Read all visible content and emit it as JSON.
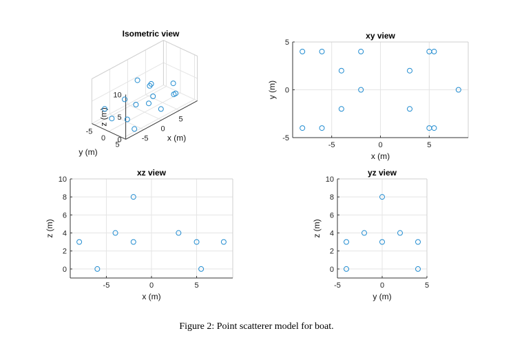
{
  "figure": {
    "caption": "Figure 2: Point scatterer model for boat."
  },
  "colors": {
    "marker": "#1f8bd0",
    "grid": "#e4e4e4",
    "axis": "#333333",
    "back_axis": "#cfcfcf"
  },
  "chart_data": [
    {
      "id": "iso",
      "type": "scatter3d",
      "title": "Isometric view",
      "xlabel": "x (m)",
      "ylabel": "y (m)",
      "zlabel": "z (m)",
      "xlim": [
        -10,
        10
      ],
      "ylim": [
        -6,
        6
      ],
      "zlim": [
        0,
        10
      ],
      "xticks": [
        -5,
        0,
        5
      ],
      "yticks": [
        -5,
        0,
        5
      ],
      "zticks": [
        0,
        5,
        10
      ],
      "points": [
        {
          "x": -8,
          "y": 4,
          "z": 3
        },
        {
          "x": -6,
          "y": 4,
          "z": 0
        },
        {
          "x": -2,
          "y": 4,
          "z": 4
        },
        {
          "x": 5,
          "y": 4,
          "z": 3
        },
        {
          "x": 5.5,
          "y": 4,
          "z": 3
        },
        {
          "x": -4,
          "y": 2,
          "z": 4
        },
        {
          "x": 3,
          "y": 2,
          "z": 0
        },
        {
          "x": -2,
          "y": 0,
          "z": 8
        },
        {
          "x": 8,
          "y": 0,
          "z": 3
        },
        {
          "x": -4,
          "y": -2,
          "z": 4
        },
        {
          "x": 3,
          "y": -2,
          "z": 4
        },
        {
          "x": -8,
          "y": -4,
          "z": 3
        },
        {
          "x": -6,
          "y": -4,
          "z": 0
        },
        {
          "x": 5,
          "y": -4,
          "z": 3
        },
        {
          "x": 5.5,
          "y": -4,
          "z": 0
        }
      ]
    },
    {
      "id": "xy",
      "type": "scatter",
      "title": "xy view",
      "xlabel": "x (m)",
      "ylabel": "y (m)",
      "xlim": [
        -9,
        9
      ],
      "ylim": [
        -5,
        5
      ],
      "xticks": [
        -5,
        0,
        5
      ],
      "yticks": [
        -5,
        0,
        5
      ],
      "points": [
        {
          "x": -8,
          "y": 4
        },
        {
          "x": -6,
          "y": 4
        },
        {
          "x": -2,
          "y": 4
        },
        {
          "x": 5,
          "y": 4
        },
        {
          "x": 5.5,
          "y": 4
        },
        {
          "x": -4,
          "y": 2
        },
        {
          "x": 3,
          "y": 2
        },
        {
          "x": -2,
          "y": 0
        },
        {
          "x": 8,
          "y": 0
        },
        {
          "x": -4,
          "y": -2
        },
        {
          "x": 3,
          "y": -2
        },
        {
          "x": -8,
          "y": -4
        },
        {
          "x": -6,
          "y": -4
        },
        {
          "x": 5,
          "y": -4
        },
        {
          "x": 5.5,
          "y": -4
        }
      ]
    },
    {
      "id": "xz",
      "type": "scatter",
      "title": "xz view",
      "xlabel": "x (m)",
      "ylabel": "z (m)",
      "xlim": [
        -9,
        9
      ],
      "ylim": [
        -1,
        10
      ],
      "xticks": [
        -5,
        0,
        5
      ],
      "yticks": [
        0,
        2,
        4,
        6,
        8,
        10
      ],
      "points": [
        {
          "x": -8,
          "y": 3
        },
        {
          "x": -6,
          "y": 0
        },
        {
          "x": -4,
          "y": 4
        },
        {
          "x": -2,
          "y": 8
        },
        {
          "x": -2,
          "y": 3
        },
        {
          "x": 3,
          "y": 4
        },
        {
          "x": 5,
          "y": 3
        },
        {
          "x": 5.5,
          "y": 0
        },
        {
          "x": 8,
          "y": 3
        }
      ]
    },
    {
      "id": "yz",
      "type": "scatter",
      "title": "yz view",
      "xlabel": "y (m)",
      "ylabel": "z (m)",
      "xlim": [
        -5,
        5
      ],
      "ylim": [
        -1,
        10
      ],
      "xticks": [
        -5,
        0,
        5
      ],
      "yticks": [
        0,
        2,
        4,
        6,
        8,
        10
      ],
      "points": [
        {
          "x": -4,
          "y": 3
        },
        {
          "x": -4,
          "y": 0
        },
        {
          "x": -2,
          "y": 4
        },
        {
          "x": 0,
          "y": 8
        },
        {
          "x": 0,
          "y": 3
        },
        {
          "x": 2,
          "y": 4
        },
        {
          "x": 4,
          "y": 3
        },
        {
          "x": 4,
          "y": 0
        }
      ]
    }
  ]
}
